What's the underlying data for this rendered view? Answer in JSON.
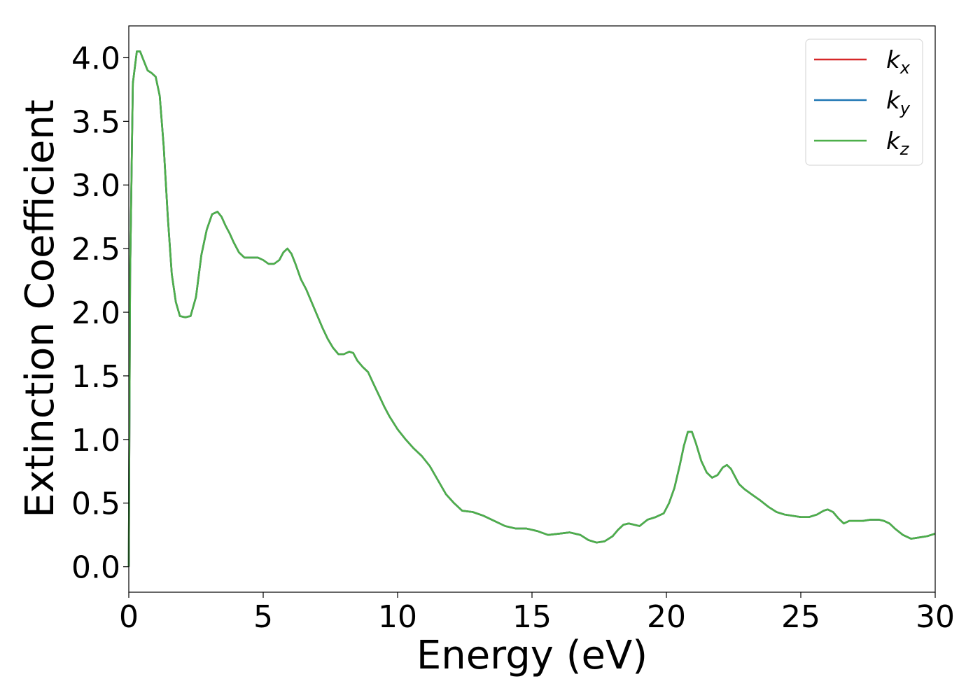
{
  "chart_data": {
    "type": "line",
    "xlabel": "Energy (eV)",
    "ylabel": "Extinction Coefficient",
    "xlim": [
      0,
      30
    ],
    "ylim": [
      -0.2,
      4.25
    ],
    "xticks": [
      0,
      5,
      10,
      15,
      20,
      25,
      30
    ],
    "xtick_labels": [
      "0",
      "5",
      "10",
      "15",
      "20",
      "25",
      "30"
    ],
    "yticks": [
      0.0,
      0.5,
      1.0,
      1.5,
      2.0,
      2.5,
      3.0,
      3.5,
      4.0
    ],
    "ytick_labels": [
      "0.0",
      "0.5",
      "1.0",
      "1.5",
      "2.0",
      "2.5",
      "3.0",
      "3.5",
      "4.0"
    ],
    "grid": false,
    "legend_position": "top-right",
    "x": [
      0,
      0.05,
      0.15,
      0.3,
      0.42,
      0.55,
      0.7,
      0.85,
      1.0,
      1.15,
      1.3,
      1.45,
      1.6,
      1.75,
      1.9,
      2.1,
      2.3,
      2.5,
      2.7,
      2.9,
      3.1,
      3.3,
      3.45,
      3.6,
      3.75,
      3.9,
      4.1,
      4.3,
      4.5,
      4.8,
      5.0,
      5.2,
      5.4,
      5.6,
      5.75,
      5.9,
      6.05,
      6.2,
      6.4,
      6.6,
      6.8,
      7.0,
      7.2,
      7.4,
      7.6,
      7.8,
      8.0,
      8.2,
      8.35,
      8.5,
      8.7,
      8.9,
      9.1,
      9.3,
      9.5,
      9.7,
      10.0,
      10.3,
      10.6,
      10.9,
      11.2,
      11.5,
      11.8,
      12.1,
      12.4,
      12.8,
      13.2,
      13.6,
      14.0,
      14.4,
      14.8,
      15.2,
      15.6,
      16.0,
      16.4,
      16.8,
      17.1,
      17.4,
      17.7,
      18.0,
      18.2,
      18.4,
      18.6,
      18.8,
      19.0,
      19.3,
      19.6,
      19.9,
      20.1,
      20.3,
      20.5,
      20.65,
      20.8,
      20.95,
      21.1,
      21.3,
      21.5,
      21.7,
      21.9,
      22.1,
      22.25,
      22.4,
      22.55,
      22.7,
      22.9,
      23.1,
      23.3,
      23.5,
      23.8,
      24.1,
      24.4,
      24.7,
      25.0,
      25.3,
      25.6,
      25.85,
      26.0,
      26.2,
      26.4,
      26.6,
      26.8,
      27.0,
      27.3,
      27.6,
      27.9,
      28.1,
      28.3,
      28.5,
      28.8,
      29.1,
      29.4,
      29.7,
      30.0
    ],
    "series": [
      {
        "name": "k_x",
        "color": "#d62728",
        "values": [
          0.0,
          2.3,
          3.8,
          4.05,
          4.05,
          3.98,
          3.9,
          3.88,
          3.85,
          3.7,
          3.3,
          2.75,
          2.3,
          2.08,
          1.97,
          1.96,
          1.97,
          2.12,
          2.45,
          2.65,
          2.77,
          2.79,
          2.75,
          2.68,
          2.62,
          2.55,
          2.47,
          2.43,
          2.43,
          2.43,
          2.41,
          2.38,
          2.38,
          2.41,
          2.47,
          2.5,
          2.46,
          2.38,
          2.26,
          2.18,
          2.08,
          1.98,
          1.88,
          1.79,
          1.72,
          1.67,
          1.67,
          1.69,
          1.68,
          1.62,
          1.57,
          1.53,
          1.44,
          1.35,
          1.26,
          1.18,
          1.08,
          1.0,
          0.93,
          0.87,
          0.79,
          0.68,
          0.57,
          0.5,
          0.44,
          0.43,
          0.4,
          0.36,
          0.32,
          0.3,
          0.3,
          0.28,
          0.25,
          0.26,
          0.27,
          0.25,
          0.21,
          0.19,
          0.2,
          0.24,
          0.29,
          0.33,
          0.34,
          0.33,
          0.32,
          0.37,
          0.39,
          0.42,
          0.5,
          0.62,
          0.8,
          0.95,
          1.06,
          1.06,
          0.97,
          0.83,
          0.74,
          0.7,
          0.72,
          0.78,
          0.8,
          0.77,
          0.71,
          0.65,
          0.61,
          0.58,
          0.55,
          0.52,
          0.47,
          0.43,
          0.41,
          0.4,
          0.39,
          0.39,
          0.41,
          0.44,
          0.45,
          0.43,
          0.38,
          0.34,
          0.36,
          0.36,
          0.36,
          0.37,
          0.37,
          0.36,
          0.34,
          0.3,
          0.25,
          0.22,
          0.23,
          0.24,
          0.26
        ]
      },
      {
        "name": "k_y",
        "color": "#1f77b4",
        "values": [
          0.0,
          2.3,
          3.8,
          4.05,
          4.05,
          3.98,
          3.9,
          3.88,
          3.85,
          3.7,
          3.3,
          2.75,
          2.3,
          2.08,
          1.97,
          1.96,
          1.97,
          2.12,
          2.45,
          2.65,
          2.77,
          2.79,
          2.75,
          2.68,
          2.62,
          2.55,
          2.47,
          2.43,
          2.43,
          2.43,
          2.41,
          2.38,
          2.38,
          2.41,
          2.47,
          2.5,
          2.46,
          2.38,
          2.26,
          2.18,
          2.08,
          1.98,
          1.88,
          1.79,
          1.72,
          1.67,
          1.67,
          1.69,
          1.68,
          1.62,
          1.57,
          1.53,
          1.44,
          1.35,
          1.26,
          1.18,
          1.08,
          1.0,
          0.93,
          0.87,
          0.79,
          0.68,
          0.57,
          0.5,
          0.44,
          0.43,
          0.4,
          0.36,
          0.32,
          0.3,
          0.3,
          0.28,
          0.25,
          0.26,
          0.27,
          0.25,
          0.21,
          0.19,
          0.2,
          0.24,
          0.29,
          0.33,
          0.34,
          0.33,
          0.32,
          0.37,
          0.39,
          0.42,
          0.5,
          0.62,
          0.8,
          0.95,
          1.06,
          1.06,
          0.97,
          0.83,
          0.74,
          0.7,
          0.72,
          0.78,
          0.8,
          0.77,
          0.71,
          0.65,
          0.61,
          0.58,
          0.55,
          0.52,
          0.47,
          0.43,
          0.41,
          0.4,
          0.39,
          0.39,
          0.41,
          0.44,
          0.45,
          0.43,
          0.38,
          0.34,
          0.36,
          0.36,
          0.36,
          0.37,
          0.37,
          0.36,
          0.34,
          0.3,
          0.25,
          0.22,
          0.23,
          0.24,
          0.26
        ]
      },
      {
        "name": "k_z",
        "color": "#4daf4a",
        "values": [
          0.0,
          2.3,
          3.8,
          4.05,
          4.05,
          3.98,
          3.9,
          3.88,
          3.85,
          3.7,
          3.3,
          2.75,
          2.3,
          2.08,
          1.97,
          1.96,
          1.97,
          2.12,
          2.45,
          2.65,
          2.77,
          2.79,
          2.75,
          2.68,
          2.62,
          2.55,
          2.47,
          2.43,
          2.43,
          2.43,
          2.41,
          2.38,
          2.38,
          2.41,
          2.47,
          2.5,
          2.46,
          2.38,
          2.26,
          2.18,
          2.08,
          1.98,
          1.88,
          1.79,
          1.72,
          1.67,
          1.67,
          1.69,
          1.68,
          1.62,
          1.57,
          1.53,
          1.44,
          1.35,
          1.26,
          1.18,
          1.08,
          1.0,
          0.93,
          0.87,
          0.79,
          0.68,
          0.57,
          0.5,
          0.44,
          0.43,
          0.4,
          0.36,
          0.32,
          0.3,
          0.3,
          0.28,
          0.25,
          0.26,
          0.27,
          0.25,
          0.21,
          0.19,
          0.2,
          0.24,
          0.29,
          0.33,
          0.34,
          0.33,
          0.32,
          0.37,
          0.39,
          0.42,
          0.5,
          0.62,
          0.8,
          0.95,
          1.06,
          1.06,
          0.97,
          0.83,
          0.74,
          0.7,
          0.72,
          0.78,
          0.8,
          0.77,
          0.71,
          0.65,
          0.61,
          0.58,
          0.55,
          0.52,
          0.47,
          0.43,
          0.41,
          0.4,
          0.39,
          0.39,
          0.41,
          0.44,
          0.45,
          0.43,
          0.38,
          0.34,
          0.36,
          0.36,
          0.36,
          0.37,
          0.37,
          0.36,
          0.34,
          0.3,
          0.25,
          0.22,
          0.23,
          0.24,
          0.26
        ]
      }
    ],
    "legend": [
      {
        "base": "k",
        "sub": "x",
        "color": "#d62728"
      },
      {
        "base": "k",
        "sub": "y",
        "color": "#1f77b4"
      },
      {
        "base": "k",
        "sub": "z",
        "color": "#4daf4a"
      }
    ]
  }
}
